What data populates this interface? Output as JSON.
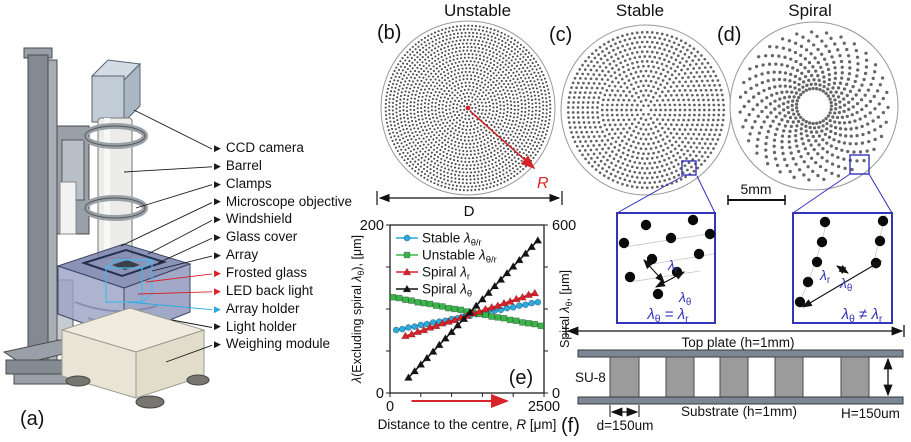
{
  "figure": {
    "panel_a": {
      "tag": "(a)",
      "labels": [
        {
          "text": "CCD camera",
          "color": "#1a1a1a"
        },
        {
          "text": "Barrel",
          "color": "#1a1a1a"
        },
        {
          "text": "Clamps",
          "color": "#1a1a1a"
        },
        {
          "text": "Microscope objective",
          "color": "#1a1a1a"
        },
        {
          "text": "Windshield",
          "color": "#1a1a1a"
        },
        {
          "text": "Glass cover",
          "color": "#1a1a1a"
        },
        {
          "text": "Array",
          "color": "#1a1a1a"
        },
        {
          "text": "Frosted glass",
          "color": "#d8232a"
        },
        {
          "text": "LED back light",
          "color": "#d8232a"
        },
        {
          "text": "Array holder",
          "color": "#29abe2"
        },
        {
          "text": "Light holder",
          "color": "#1a1a1a"
        },
        {
          "text": "Weighing module",
          "color": "#1a1a1a"
        }
      ]
    },
    "panel_b": {
      "tag": "(b)",
      "title": "Unstable",
      "radius_label": "R",
      "diameter_label": "D"
    },
    "panel_c": {
      "tag": "(c)",
      "title": "Stable"
    },
    "panel_d": {
      "tag": "(d)",
      "title": "Spiral",
      "scale_label": "5mm"
    },
    "inset_stable": {
      "lambda_r": [
        {
          "t": "λ",
          "i": true
        },
        {
          "t": "r",
          "sub": true
        }
      ],
      "lambda_theta": [
        {
          "t": "λ",
          "i": true
        },
        {
          "t": "θ",
          "sub": true
        }
      ],
      "equation": [
        {
          "t": "λ",
          "i": true
        },
        {
          "t": "θ",
          "sub": true
        },
        {
          "t": " = "
        },
        {
          "t": "λ",
          "i": true
        },
        {
          "t": "r",
          "sub": true
        }
      ]
    },
    "inset_spiral": {
      "lambda_r": [
        {
          "t": "λ",
          "i": true
        },
        {
          "t": "r",
          "sub": true
        }
      ],
      "lambda_theta": [
        {
          "t": "λ",
          "i": true
        },
        {
          "t": "θ",
          "sub": true
        }
      ],
      "equation": [
        {
          "t": "λ",
          "i": true
        },
        {
          "t": "θ",
          "sub": true
        },
        {
          "t": " ≠ "
        },
        {
          "t": "λ",
          "i": true
        },
        {
          "t": "r",
          "sub": true
        }
      ]
    },
    "panel_e_tag": "(e)",
    "panel_f": {
      "tag": "(f)",
      "top_plate_label": "Top plate (h=1mm)",
      "substrate_label": "Substrate (h=1mm)",
      "material_label": "SU-8",
      "pillar_width_label": "d=150um",
      "pillar_height_label": "H=150um"
    }
  },
  "colors": {
    "red": "#d8232a",
    "cyan": "#29abe2",
    "green": "#3ab54a",
    "black_series": "#141414",
    "inset_blue": "#3333bb",
    "dot_gray": "#555555"
  },
  "chart_data": {
    "type": "line",
    "title": "",
    "xlabel": [
      {
        "t": "Distance to the centre, "
      },
      {
        "t": "R",
        "i": true
      },
      {
        "t": " [μm]"
      }
    ],
    "ylabel_left": [
      {
        "t": "λ",
        "i": true
      },
      {
        "t": "(Excluding spiral "
      },
      {
        "t": "λ",
        "i": true
      },
      {
        "t": "θ",
        "sub": true
      },
      {
        "t": "), [μm]"
      }
    ],
    "ylabel_right": [
      {
        "t": "Spiral "
      },
      {
        "t": "λ",
        "i": true
      },
      {
        "t": "θ",
        "sub": true
      },
      {
        "t": ", [μm]"
      }
    ],
    "x_range": [
      0,
      2500
    ],
    "y_left_range": [
      0,
      200
    ],
    "y_right_range": [
      0,
      600
    ],
    "x_ticks": [
      0,
      500,
      1000,
      1500,
      2000,
      2500
    ],
    "y_left_ticks": [
      0,
      50,
      100,
      150,
      200
    ],
    "y_right_ticks": [
      0,
      150,
      300,
      450,
      600
    ],
    "x_tick_labels": [
      {
        "v": 0,
        "label": "0"
      },
      {
        "v": 2500,
        "label": "2500"
      }
    ],
    "y_left_tick_labels": [
      {
        "v": 0,
        "label": "0"
      },
      {
        "v": 200,
        "label": "200"
      }
    ],
    "y_right_tick_labels": [
      {
        "v": 0,
        "label": "0"
      },
      {
        "v": 600,
        "label": "600"
      }
    ],
    "grid": false,
    "legend_position": "top-left-inside",
    "annotation_arrow": {
      "color": "#d8232a",
      "from_x": 350,
      "to_x": 1900
    },
    "series": [
      {
        "name": "Stable λθ/r",
        "legend": [
          {
            "t": "Stable "
          },
          {
            "t": "λ",
            "i": true
          },
          {
            "t": "θ/r",
            "sub": true
          }
        ],
        "color": "#29abe2",
        "marker": "circle",
        "axis": "left",
        "x": [
          100,
          200,
          300,
          400,
          500,
          600,
          700,
          800,
          900,
          1000,
          1100,
          1200,
          1300,
          1400,
          1500,
          1600,
          1700,
          1800,
          1900,
          2000,
          2100,
          2200,
          2300,
          2400
        ],
        "y": [
          75,
          76,
          78,
          79,
          81,
          82,
          84,
          85,
          86,
          88,
          89,
          91,
          92,
          94,
          95,
          97,
          98,
          99,
          101,
          102,
          104,
          105,
          107,
          108
        ]
      },
      {
        "name": "Unstable λθ/r",
        "legend": [
          {
            "t": "Unstable "
          },
          {
            "t": "λ",
            "i": true
          },
          {
            "t": "θ/r",
            "sub": true
          }
        ],
        "color": "#3ab54a",
        "marker": "square",
        "axis": "left",
        "x": [
          50,
          150,
          250,
          350,
          450,
          550,
          650,
          750,
          850,
          950,
          1050,
          1150,
          1250,
          1350,
          1450,
          1550,
          1650,
          1750,
          1850,
          1950,
          2050,
          2150,
          2250,
          2350,
          2450
        ],
        "y": [
          114,
          113,
          111,
          110,
          108,
          107,
          106,
          104,
          103,
          101,
          100,
          99,
          97,
          96,
          94,
          93,
          91,
          90,
          89,
          87,
          86,
          84,
          83,
          82,
          80
        ]
      },
      {
        "name": "Spiral λr",
        "legend": [
          {
            "t": "Spiral "
          },
          {
            "t": "λ",
            "i": true
          },
          {
            "t": "r",
            "sub": true
          }
        ],
        "color": "#d8232a",
        "marker": "triangle",
        "axis": "left",
        "x": [
          250,
          350,
          450,
          550,
          650,
          750,
          850,
          950,
          1050,
          1150,
          1250,
          1350,
          1450,
          1550,
          1650,
          1750,
          1850,
          1950,
          2050,
          2150,
          2250,
          2350
        ],
        "y": [
          68,
          70,
          73,
          75,
          78,
          80,
          83,
          85,
          87,
          90,
          92,
          95,
          97,
          100,
          102,
          104,
          107,
          109,
          112,
          114,
          117,
          119
        ]
      },
      {
        "name": "Spiral λθ",
        "legend": [
          {
            "t": "Spiral "
          },
          {
            "t": "λ",
            "i": true
          },
          {
            "t": "θ",
            "sub": true
          }
        ],
        "color": "#141414",
        "marker": "triangle",
        "axis": "right",
        "x": [
          300,
          400,
          500,
          600,
          700,
          800,
          900,
          1000,
          1100,
          1200,
          1300,
          1400,
          1500,
          1600,
          1700,
          1800,
          1900,
          2000,
          2100,
          2200,
          2300,
          2400
        ],
        "y": [
          55,
          78,
          102,
          125,
          148,
          172,
          195,
          218,
          242,
          265,
          288,
          312,
          335,
          358,
          382,
          405,
          428,
          452,
          475,
          498,
          522,
          545
        ]
      }
    ]
  }
}
